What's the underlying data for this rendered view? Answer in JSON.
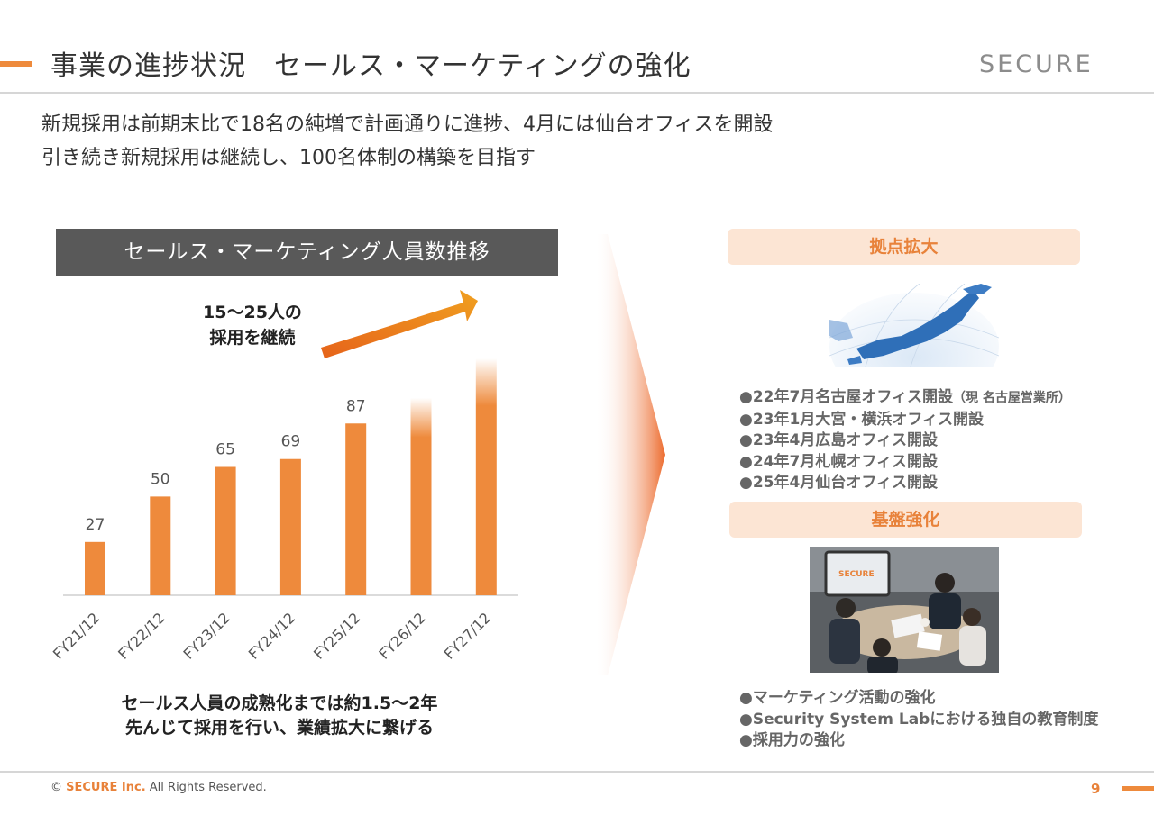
{
  "header": {
    "title": "事業の進捗状況　セールス・マーケティングの強化",
    "logo_text": "SECURE"
  },
  "intro": {
    "line1": "新規採用は前期末比で18名の純増で計画通りに進捗、4月には仙台オフィスを開設",
    "line2": "引き続き新規採用は継続し、100名体制の構築を目指す"
  },
  "chart_panel": {
    "title": "セールス・マーケティング人員数推移",
    "callout_line1": "15～25人の",
    "callout_line2": "採用を継続",
    "note_line1": "セールス人員の成熟化までは約1.5～2年",
    "note_line2": "先んじて採用を行い、業績拡大に繋げる"
  },
  "chart_data": {
    "type": "bar",
    "categories": [
      "FY21/12",
      "FY22/12",
      "FY23/12",
      "FY24/12",
      "FY25/12",
      "FY26/12",
      "FY27/12"
    ],
    "values": [
      27,
      50,
      65,
      69,
      87,
      null,
      null
    ],
    "labels": [
      "27",
      "50",
      "65",
      "69",
      "87",
      "",
      ""
    ],
    "projected_indicative_values": [
      100,
      120
    ],
    "title": "セールス・マーケティング人員数推移",
    "xlabel": "",
    "ylabel": "",
    "ylim": [
      0,
      130
    ],
    "grid": false,
    "color": "#ee8a3c"
  },
  "expansion": {
    "header": "拠点拡大",
    "items": [
      {
        "text": "●22年7月名古屋オフィス開設",
        "note": "（現 名古屋営業所）"
      },
      {
        "text": "●23年1月大宮・横浜オフィス開設",
        "note": ""
      },
      {
        "text": "●23年4月広島オフィス開設",
        "note": ""
      },
      {
        "text": "●24年7月札幌オフィス開設",
        "note": ""
      },
      {
        "text": "●25年4月仙台オフィス開設",
        "note": ""
      }
    ]
  },
  "foundation": {
    "header": "基盤強化",
    "image_logo": "SECURE",
    "items": [
      "●マーケティング活動の強化",
      "●Security System Labにおける独自の教育制度",
      "●採用力の強化"
    ]
  },
  "footer": {
    "copyright_symbol": "©",
    "brand": "SECURE Inc.",
    "rights": "All Rights Reserved.",
    "page_number": "9"
  },
  "colors": {
    "accent": "#ee8a3c",
    "section_bg": "#fce5d4",
    "title_bar": "#595959"
  }
}
